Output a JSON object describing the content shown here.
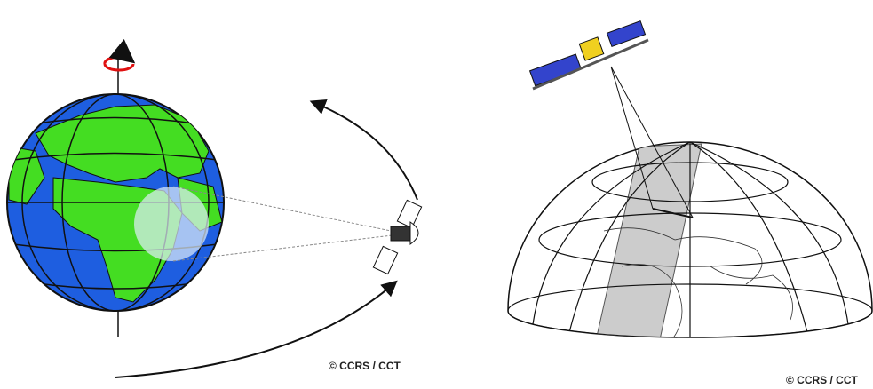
{
  "credits": [
    "© CCRS / CCT",
    "© CCRS / CCT"
  ]
}
